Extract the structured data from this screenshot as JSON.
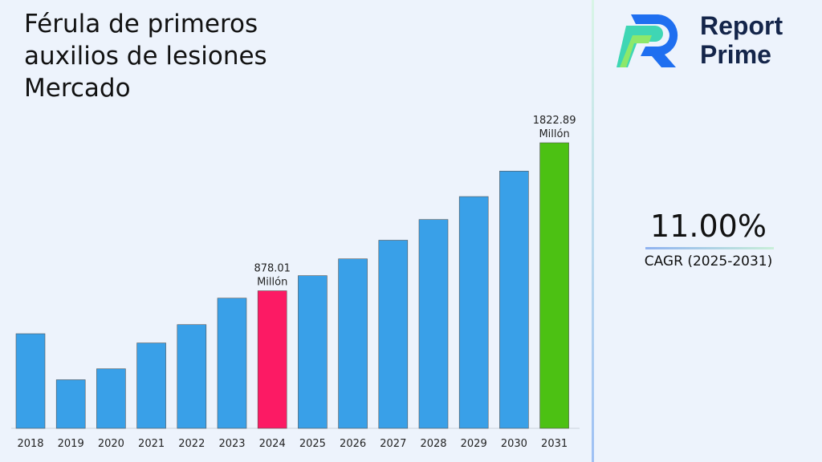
{
  "chart_data": {
    "type": "bar",
    "title": "Férula de primeros auxilios de lesiones Mercado",
    "categories": [
      "2018",
      "2019",
      "2020",
      "2021",
      "2022",
      "2023",
      "2024",
      "2025",
      "2026",
      "2027",
      "2028",
      "2029",
      "2030",
      "2031"
    ],
    "values": [
      604,
      310,
      380,
      545,
      662,
      831,
      878.01,
      974.6,
      1081.8,
      1200.8,
      1332.9,
      1479.5,
      1642.2,
      1822.89
    ],
    "unit": "Millón",
    "data_labels": [
      {
        "category": "2024",
        "text": "878.01",
        "unit": "Millón"
      },
      {
        "category": "2031",
        "text": "1822.89",
        "unit": "Millón"
      }
    ],
    "colors": {
      "default": "#39a0e8",
      "highlight_2024": "#fc1a64",
      "highlight_2031": "#4cc113"
    },
    "ylim": [
      0,
      1822.89
    ],
    "grid": false,
    "xlabel": "",
    "ylabel": ""
  },
  "brand": {
    "line1": "Report",
    "line2": "Prime"
  },
  "cagr": {
    "value": "11.00%",
    "label": "CAGR (2025-2031)"
  }
}
